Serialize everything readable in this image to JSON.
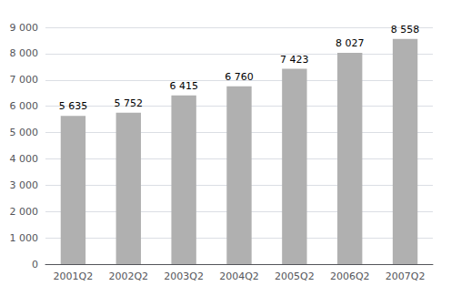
{
  "chart_data": {
    "type": "bar",
    "categories": [
      "2001Q2",
      "2002Q2",
      "2003Q2",
      "2004Q2",
      "2005Q2",
      "2006Q2",
      "2007Q2"
    ],
    "values": [
      5635,
      5752,
      6415,
      6760,
      7423,
      8027,
      8558
    ],
    "value_labels": [
      "5 635",
      "5 752",
      "6 415",
      "6 760",
      "7 423",
      "8 027",
      "8 558"
    ],
    "data_labels": true,
    "color": "#b0b0b0",
    "ylim": [
      0,
      9000
    ],
    "yticks": [
      0,
      {
        "value": 1000,
        "label": "1 000"
      },
      {
        "value": 2000,
        "label": "2 000"
      },
      {
        "value": 3000,
        "label": "3 000"
      },
      {
        "value": 4000,
        "label": "4 000"
      },
      {
        "value": 5000,
        "label": "5 000"
      },
      {
        "value": 6000,
        "label": "6 000"
      },
      {
        "value": 7000,
        "label": "7 000"
      },
      {
        "value": 8000,
        "label": "8 000"
      },
      {
        "value": 9000,
        "label": "9 000"
      }
    ],
    "grid": true
  }
}
